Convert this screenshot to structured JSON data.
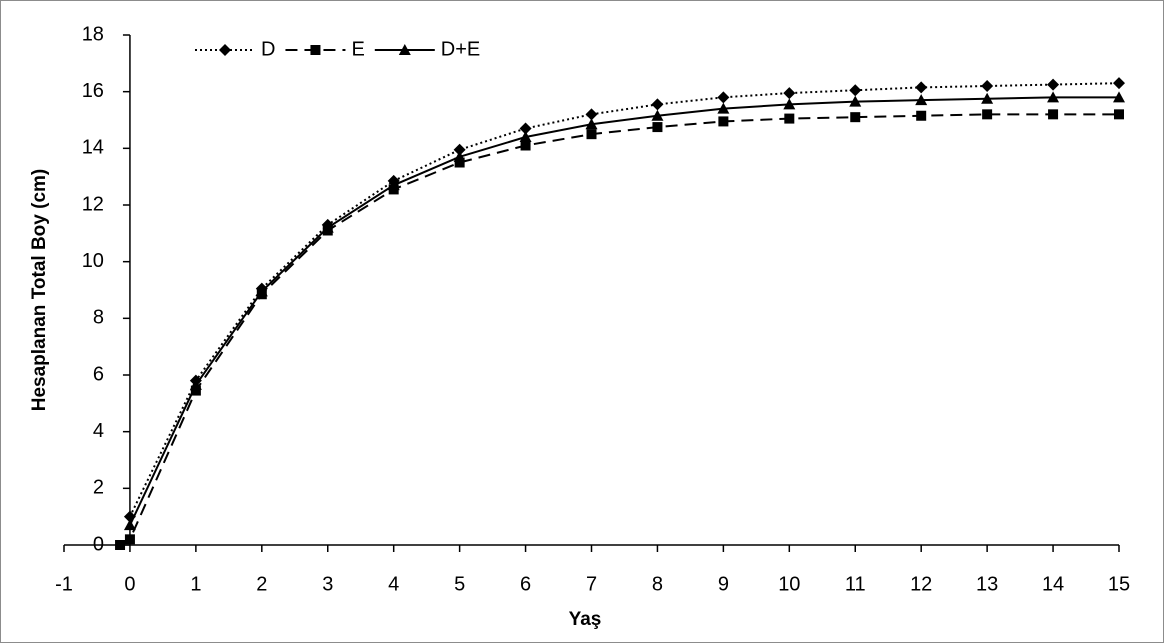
{
  "chart_data": {
    "type": "line",
    "xlabel": "Yaş",
    "ylabel": "Hesaplanan Total Boy (cm)",
    "xlim": [
      -1,
      15
    ],
    "ylim": [
      0,
      18
    ],
    "xticks": [
      -1,
      0,
      1,
      2,
      3,
      4,
      5,
      6,
      7,
      8,
      9,
      10,
      11,
      12,
      13,
      14,
      15
    ],
    "yticks": [
      0,
      2,
      4,
      6,
      8,
      10,
      12,
      14,
      16,
      18
    ],
    "legend": "top-left",
    "series": [
      {
        "name": "D",
        "color": "#000000",
        "dash": "dotted",
        "marker": "diamond",
        "x": [
          0,
          1,
          2,
          3,
          4,
          5,
          6,
          7,
          8,
          9,
          10,
          11,
          12,
          13,
          14,
          15
        ],
        "values": [
          1.0,
          5.8,
          9.05,
          11.3,
          12.85,
          13.95,
          14.7,
          15.2,
          15.55,
          15.8,
          15.95,
          16.05,
          16.15,
          16.2,
          16.25,
          16.3
        ]
      },
      {
        "name": "E",
        "color": "#000000",
        "dash": "dashed",
        "marker": "square",
        "x": [
          -0.15,
          0,
          1,
          2,
          3,
          4,
          5,
          6,
          7,
          8,
          9,
          10,
          11,
          12,
          13,
          14,
          15
        ],
        "values": [
          0,
          0.2,
          5.45,
          8.85,
          11.1,
          12.55,
          13.5,
          14.1,
          14.5,
          14.75,
          14.95,
          15.05,
          15.1,
          15.15,
          15.2,
          15.2,
          15.2
        ]
      },
      {
        "name": "D+E",
        "color": "#000000",
        "dash": "solid",
        "marker": "triangle",
        "x": [
          0,
          1,
          2,
          3,
          4,
          5,
          6,
          7,
          8,
          9,
          10,
          11,
          12,
          13,
          14,
          15
        ],
        "values": [
          0.7,
          5.65,
          8.95,
          11.2,
          12.7,
          13.7,
          14.4,
          14.85,
          15.15,
          15.4,
          15.55,
          15.65,
          15.7,
          15.75,
          15.8,
          15.8
        ]
      }
    ]
  }
}
